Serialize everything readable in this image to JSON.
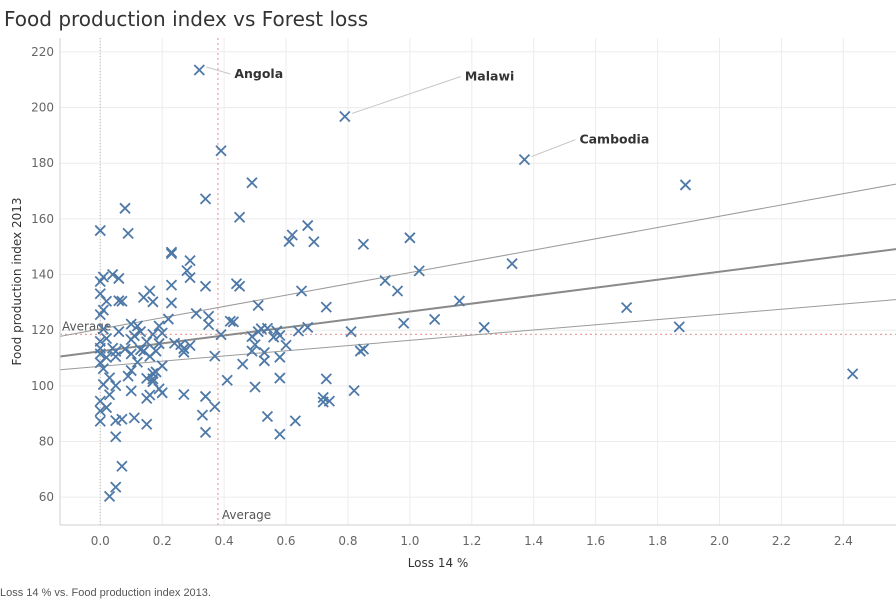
{
  "title": "Food production index vs Forest loss",
  "caption": "Loss 14 % vs. Food production index 2013.",
  "chart_data": {
    "type": "scatter",
    "title": "Food production index vs Forest loss",
    "xlabel": "Loss 14 %",
    "ylabel": "Food production index 2013",
    "xlim": [
      -0.13,
      2.57
    ],
    "ylim": [
      50,
      225
    ],
    "x_ticks": [
      "0.0",
      "0.2",
      "0.4",
      "0.6",
      "0.8",
      "1.0",
      "1.2",
      "1.4",
      "1.6",
      "1.8",
      "2.0",
      "2.2",
      "2.4"
    ],
    "y_ticks": [
      "60",
      "80",
      "100",
      "120",
      "140",
      "160",
      "180",
      "200",
      "220"
    ],
    "grid": true,
    "marker": "x",
    "marker_color": "#4e79a7",
    "reference_lines": [
      {
        "axis": "x",
        "value": 0.38,
        "label": "Average"
      },
      {
        "axis": "y",
        "value": 118.5,
        "label": "Average"
      }
    ],
    "trend": {
      "intercept": 112.4,
      "slope": 14.3,
      "band_upper": [
        [
          -0.13,
          117.8
        ],
        [
          2.57,
          172.5
        ]
      ],
      "band_lower": [
        [
          -0.13,
          105.8
        ],
        [
          2.57,
          131
        ]
      ]
    },
    "annotations": [
      {
        "label": "Angola",
        "x": 0.32,
        "y": 213.5
      },
      {
        "label": "Malawi",
        "x": 0.79,
        "y": 196.8
      },
      {
        "label": "Cambodia",
        "x": 1.37,
        "y": 181.3
      }
    ],
    "points": [
      [
        0.32,
        213.5
      ],
      [
        0.79,
        196.8
      ],
      [
        1.37,
        181.3
      ],
      [
        0.39,
        184.5
      ],
      [
        0.49,
        173
      ],
      [
        1.89,
        172.2
      ],
      [
        0.34,
        167.2
      ],
      [
        0.08,
        163.8
      ],
      [
        0.45,
        160.6
      ],
      [
        0.67,
        157.6
      ],
      [
        0.0,
        155.8
      ],
      [
        0.09,
        154.8
      ],
      [
        0.62,
        154.2
      ],
      [
        0.61,
        151.9
      ],
      [
        0.69,
        151.8
      ],
      [
        0.85,
        150.9
      ],
      [
        1.0,
        153.2
      ],
      [
        0.23,
        148
      ],
      [
        0.23,
        147.5
      ],
      [
        0.29,
        145
      ],
      [
        1.33,
        143.9
      ],
      [
        0.28,
        141.4
      ],
      [
        1.03,
        141.3
      ],
      [
        0.01,
        139.1
      ],
      [
        0.04,
        140
      ],
      [
        0.0,
        137.5
      ],
      [
        0.06,
        138.6
      ],
      [
        0.29,
        138.9
      ],
      [
        0.44,
        136.7
      ],
      [
        0.45,
        135.8
      ],
      [
        0.34,
        135.8
      ],
      [
        0.23,
        136.2
      ],
      [
        0.65,
        134.1
      ],
      [
        0.92,
        137.8
      ],
      [
        0.96,
        134.1
      ],
      [
        0.16,
        134.1
      ],
      [
        0.0,
        133.1
      ],
      [
        0.14,
        131.8
      ],
      [
        0.17,
        130.2
      ],
      [
        0.23,
        129.8
      ],
      [
        0.02,
        130.4
      ],
      [
        0.06,
        130.6
      ],
      [
        0.07,
        130.4
      ],
      [
        0.51,
        128.9
      ],
      [
        0.73,
        128.3
      ],
      [
        1.16,
        130.5
      ],
      [
        1.7,
        128.1
      ],
      [
        0.01,
        127.2
      ],
      [
        0.0,
        125.6
      ],
      [
        0.31,
        126
      ],
      [
        0.35,
        125
      ],
      [
        0.42,
        123.2
      ],
      [
        0.43,
        123
      ],
      [
        0.22,
        124
      ],
      [
        1.08,
        123.9
      ],
      [
        0.98,
        122.5
      ],
      [
        0.1,
        122.2
      ],
      [
        0.12,
        121.5
      ],
      [
        0.19,
        121.5
      ],
      [
        0.35,
        122
      ],
      [
        0.52,
        120.5
      ],
      [
        0.54,
        120.7
      ],
      [
        0.51,
        119.5
      ],
      [
        0.57,
        119.7
      ],
      [
        0.64,
        119.7
      ],
      [
        0.67,
        121
      ],
      [
        0.81,
        119.5
      ],
      [
        1.24,
        121
      ],
      [
        1.87,
        121.2
      ],
      [
        0.01,
        120.4
      ],
      [
        0.06,
        119.5
      ],
      [
        0.11,
        118
      ],
      [
        0.13,
        119.5
      ],
      [
        0.17,
        118.5
      ],
      [
        0.2,
        119
      ],
      [
        0.39,
        118.4
      ],
      [
        0.49,
        117.7
      ],
      [
        0.56,
        117.5
      ],
      [
        0.58,
        118.1
      ],
      [
        0.0,
        116
      ],
      [
        0.02,
        117
      ],
      [
        0.1,
        116.6
      ],
      [
        0.15,
        115.8
      ],
      [
        0.19,
        115.2
      ],
      [
        0.24,
        115.3
      ],
      [
        0.26,
        114.8
      ],
      [
        0.27,
        113.4
      ],
      [
        0.29,
        114.5
      ],
      [
        0.5,
        114.8
      ],
      [
        0.6,
        114.6
      ],
      [
        0.0,
        113.5
      ],
      [
        0.04,
        113.5
      ],
      [
        0.05,
        112.4
      ],
      [
        0.08,
        113.2
      ],
      [
        0.13,
        113
      ],
      [
        0.14,
        112.5
      ],
      [
        0.18,
        112.5
      ],
      [
        0.27,
        112.1
      ],
      [
        0.49,
        112.5
      ],
      [
        0.53,
        112
      ],
      [
        0.84,
        112.5
      ],
      [
        0.85,
        113.2
      ],
      [
        0.0,
        111.5
      ],
      [
        0.02,
        110.2
      ],
      [
        0.05,
        110.5
      ],
      [
        0.1,
        111.5
      ],
      [
        0.16,
        110.6
      ],
      [
        0.37,
        110.7
      ],
      [
        0.53,
        109
      ],
      [
        0.58,
        110.3
      ],
      [
        0.0,
        108.3
      ],
      [
        0.12,
        108.5
      ],
      [
        0.2,
        107.2
      ],
      [
        0.46,
        107.8
      ],
      [
        0.01,
        106.2
      ],
      [
        0.1,
        105.5
      ],
      [
        0.17,
        104.5
      ],
      [
        0.18,
        105
      ],
      [
        0.03,
        102.9
      ],
      [
        0.09,
        103.5
      ],
      [
        0.15,
        102.7
      ],
      [
        0.17,
        102.5
      ],
      [
        0.41,
        102
      ],
      [
        0.58,
        102.8
      ],
      [
        0.73,
        102.5
      ],
      [
        2.43,
        104.3
      ],
      [
        0.01,
        100.5
      ],
      [
        0.05,
        100.1
      ],
      [
        0.17,
        101.5
      ],
      [
        0.5,
        99.6
      ],
      [
        0.1,
        98.2
      ],
      [
        0.19,
        98.9
      ],
      [
        0.2,
        97.5
      ],
      [
        0.03,
        96.8
      ],
      [
        0.16,
        96.7
      ],
      [
        0.27,
        96.9
      ],
      [
        0.15,
        95.5
      ],
      [
        0.34,
        96.2
      ],
      [
        0.72,
        95.8
      ],
      [
        0.82,
        98.3
      ],
      [
        0.0,
        94.5
      ],
      [
        0.02,
        92.2
      ],
      [
        0.74,
        94.5
      ],
      [
        0.72,
        94.2
      ],
      [
        0.37,
        92.5
      ],
      [
        0.0,
        91
      ],
      [
        0.33,
        89.5
      ],
      [
        0.54,
        89
      ],
      [
        0.11,
        88.5
      ],
      [
        0.05,
        87.5
      ],
      [
        0.07,
        88
      ],
      [
        0.0,
        87.3
      ],
      [
        0.63,
        87.4
      ],
      [
        0.15,
        86.2
      ],
      [
        0.34,
        83.3
      ],
      [
        0.58,
        82.6
      ],
      [
        0.05,
        81.7
      ],
      [
        0.07,
        71.1
      ],
      [
        0.05,
        63.6
      ],
      [
        0.03,
        60.3
      ]
    ]
  }
}
